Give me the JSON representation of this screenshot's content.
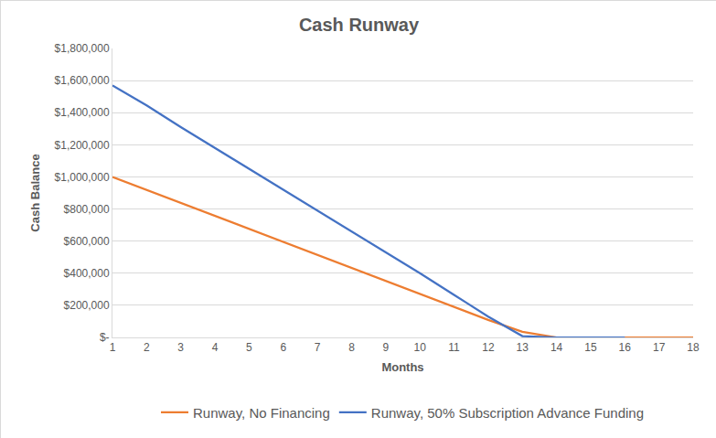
{
  "chart_data": {
    "type": "line",
    "title": "Cash Runway",
    "x_label": "Months",
    "y_label": "Cash Balance",
    "x": [
      1,
      2,
      3,
      4,
      5,
      6,
      7,
      8,
      9,
      10,
      11,
      12,
      13,
      14,
      15,
      16,
      17,
      18
    ],
    "series": [
      {
        "name": "Runway, No Financing",
        "color": "#ED7D31",
        "values": [
          1000000,
          919000,
          838000,
          757000,
          676000,
          595000,
          514000,
          433000,
          352000,
          271000,
          190000,
          109000,
          35000,
          0,
          0,
          0,
          0,
          0
        ]
      },
      {
        "name": "Runway, 50% Subscription Advance Funding",
        "color": "#4472C4",
        "values": [
          1570000,
          1445000,
          1310000,
          1180000,
          1050000,
          920000,
          790000,
          660000,
          530000,
          400000,
          265000,
          130000,
          8000,
          0,
          0,
          0,
          null,
          null
        ]
      }
    ],
    "xlim": [
      1,
      18
    ],
    "xticks": [
      1,
      2,
      3,
      4,
      5,
      6,
      7,
      8,
      9,
      10,
      11,
      12,
      13,
      14,
      15,
      16,
      17,
      18
    ],
    "ylim": [
      0,
      1800000
    ],
    "yticks": [
      {
        "value": 0,
        "label": "$-"
      },
      {
        "value": 200000,
        "label": "$200,000"
      },
      {
        "value": 400000,
        "label": "$400,000"
      },
      {
        "value": 600000,
        "label": "$600,000"
      },
      {
        "value": 800000,
        "label": "$800,000"
      },
      {
        "value": 1000000,
        "label": "$1,000,000"
      },
      {
        "value": 1200000,
        "label": "$1,200,000"
      },
      {
        "value": 1400000,
        "label": "$1,400,000"
      },
      {
        "value": 1600000,
        "label": "$1,600,000"
      },
      {
        "value": 1800000,
        "label": "$1,800,000"
      }
    ],
    "grid": true,
    "legend": "bottom"
  }
}
